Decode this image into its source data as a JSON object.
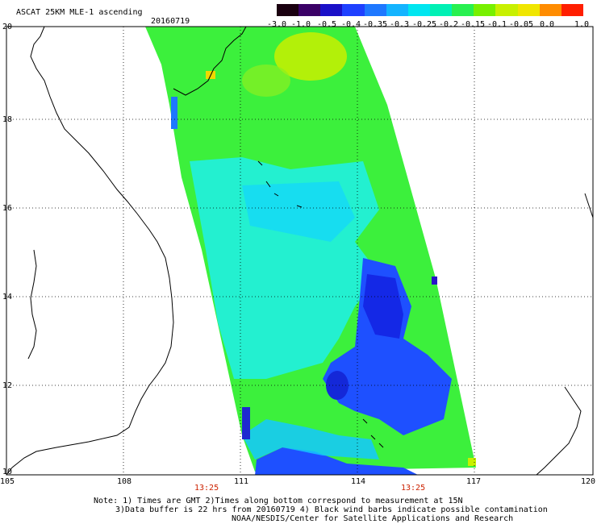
{
  "header": {
    "title": "ASCAT 25KM MLE-1 ascending",
    "date": "20160719"
  },
  "colorbar": {
    "labels": [
      "-3.0",
      "-1.0",
      "-0.5",
      "-0.4",
      "-0.35",
      "-0.3",
      "-0.25",
      "-0.2",
      "-0.15",
      "-0.1",
      "-0.05",
      "0.0",
      "1.0"
    ],
    "colors": [
      "#1a0010",
      "#3a0066",
      "#1a10c8",
      "#1e40ff",
      "#1e78ff",
      "#14b4ff",
      "#00e6f0",
      "#00f0b4",
      "#28f050",
      "#78f000",
      "#c8f000",
      "#f0e600",
      "#ff8c00",
      "#ff1e00"
    ]
  },
  "axes": {
    "lat_labels": [
      "20",
      "18",
      "16",
      "14",
      "12",
      "10"
    ],
    "lon_labels": [
      "105",
      "108",
      "111",
      "114",
      "117",
      "120"
    ]
  },
  "times": [
    "13:25",
    "13:25"
  ],
  "notes": {
    "line1": "Note: 1) Times are GMT 2)Times along bottom correspond to measurement at 15N",
    "line2": "3)Data buffer is 22 hrs from 20160719 4) Black wind barbs indicate possible contamination",
    "line3": "NOAA/NESDIS/Center for Satellite Applications and Research"
  },
  "colors": {
    "time_label": "#cc2200",
    "swath_green": "#3cf03c",
    "swath_cyan": "#00f0f0",
    "swath_blue": "#1e3cff"
  }
}
